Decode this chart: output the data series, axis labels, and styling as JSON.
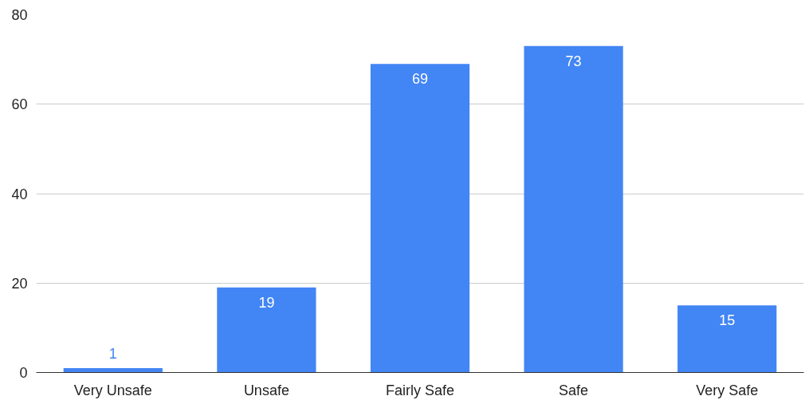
{
  "chart_data": {
    "type": "bar",
    "categories": [
      "Very Unsafe",
      "Unsafe",
      "Fairly Safe",
      "Safe",
      "Very Safe"
    ],
    "values": [
      1,
      19,
      69,
      73,
      15
    ],
    "color": "#4285f4",
    "ylim": [
      0,
      80
    ],
    "yticks": [
      0,
      20,
      40,
      60,
      80
    ],
    "grid": "y",
    "data_labels": true
  }
}
